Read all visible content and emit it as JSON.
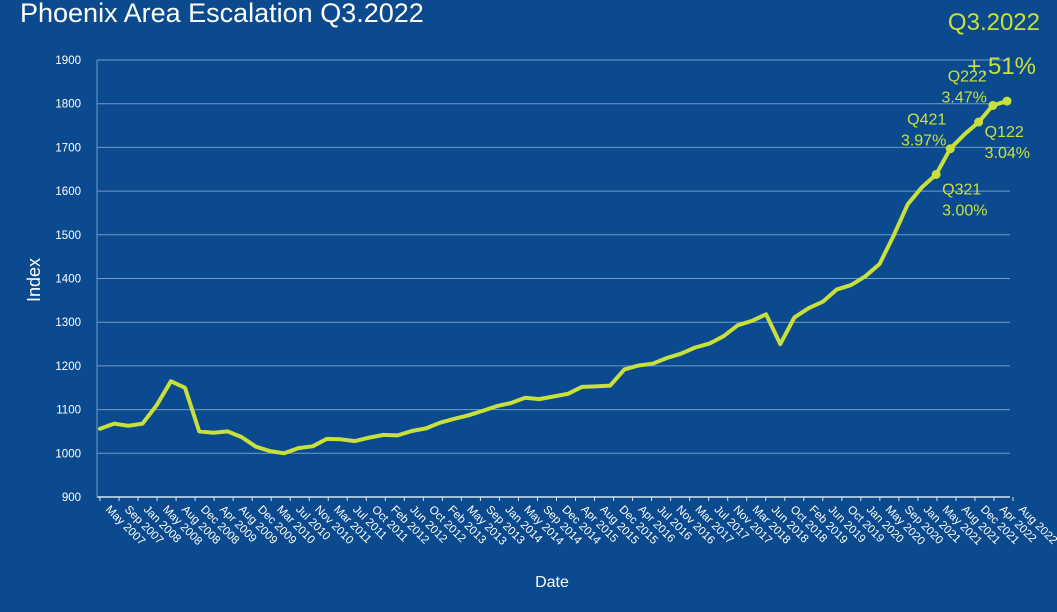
{
  "colors": {
    "background": "#0b4a8e",
    "line": "#c8e03b",
    "grid": "#6f9bc9",
    "text": "#ffffff",
    "accent_text": "#c8e03b"
  },
  "corner": {
    "period": "Q3.2022",
    "change": "+.51%"
  },
  "chart_data": {
    "type": "line",
    "title": "Phoenix Area Escalation Q3.2022",
    "xlabel": "Date",
    "ylabel": "Index",
    "ylim": [
      900,
      1900
    ],
    "yticks": [
      900,
      1000,
      1100,
      1200,
      1300,
      1400,
      1500,
      1600,
      1700,
      1800,
      1900
    ],
    "grid": true,
    "tick_labels": [
      "May 2007",
      "Sep 2007",
      "Jan 2008",
      "May 2008",
      "Aug 2008",
      "Dec 2008",
      "Apr 2009",
      "Aug 2009",
      "Dec 2009",
      "Mar 2010",
      "Jul 2010",
      "Nov 2010",
      "Mar 2011",
      "Jul 2011",
      "Oct 2011",
      "Feb 2012",
      "Jun 2012",
      "Oct 2012",
      "Feb 2013",
      "May 2013",
      "Sep 2013",
      "Jan 2014",
      "May 2014",
      "Sep 2014",
      "Dec 2014",
      "Apr 2015",
      "Aug 2015",
      "Dec 2015",
      "Apr 2016",
      "Jul 2016",
      "Nov 2016",
      "Mar 2017",
      "Jul 2017",
      "Nov 2017",
      "Mar 2018",
      "Jun 2018",
      "Oct 2018",
      "Feb 2019",
      "Jun 2019",
      "Oct 2019",
      "Jan 2020",
      "May 2020",
      "Sep 2020",
      "Jan 2021",
      "May 2021",
      "Aug 2021",
      "Dec 2021",
      "Apr 2022",
      "Aug 2022"
    ],
    "values": [
      1056,
      1068,
      1063,
      1068,
      1110,
      1165,
      1150,
      1050,
      1047,
      1050,
      1037,
      1015,
      1005,
      1000,
      1012,
      1016,
      1033,
      1032,
      1028,
      1036,
      1042,
      1041,
      1051,
      1057,
      1070,
      1079,
      1087,
      1097,
      1108,
      1115,
      1127,
      1124,
      1130,
      1136,
      1152,
      1153,
      1155,
      1192,
      1201,
      1205,
      1218,
      1228,
      1242,
      1251,
      1268,
      1293,
      1303,
      1318,
      1250,
      1311,
      1332,
      1347,
      1375,
      1385,
      1405,
      1433,
      1498,
      1570,
      1609,
      1638,
      1697,
      1730,
      1758,
      1796,
      1806
    ],
    "markers": [
      {
        "index": 59,
        "label": "Q321",
        "change": "3.00%"
      },
      {
        "index": 60,
        "label": "Q421",
        "change": "3.97%"
      },
      {
        "index": 62,
        "label": "Q122",
        "change": "3.04%"
      },
      {
        "index": 63,
        "label": "Q222",
        "change": "3.47%"
      },
      {
        "index": 64
      }
    ]
  }
}
